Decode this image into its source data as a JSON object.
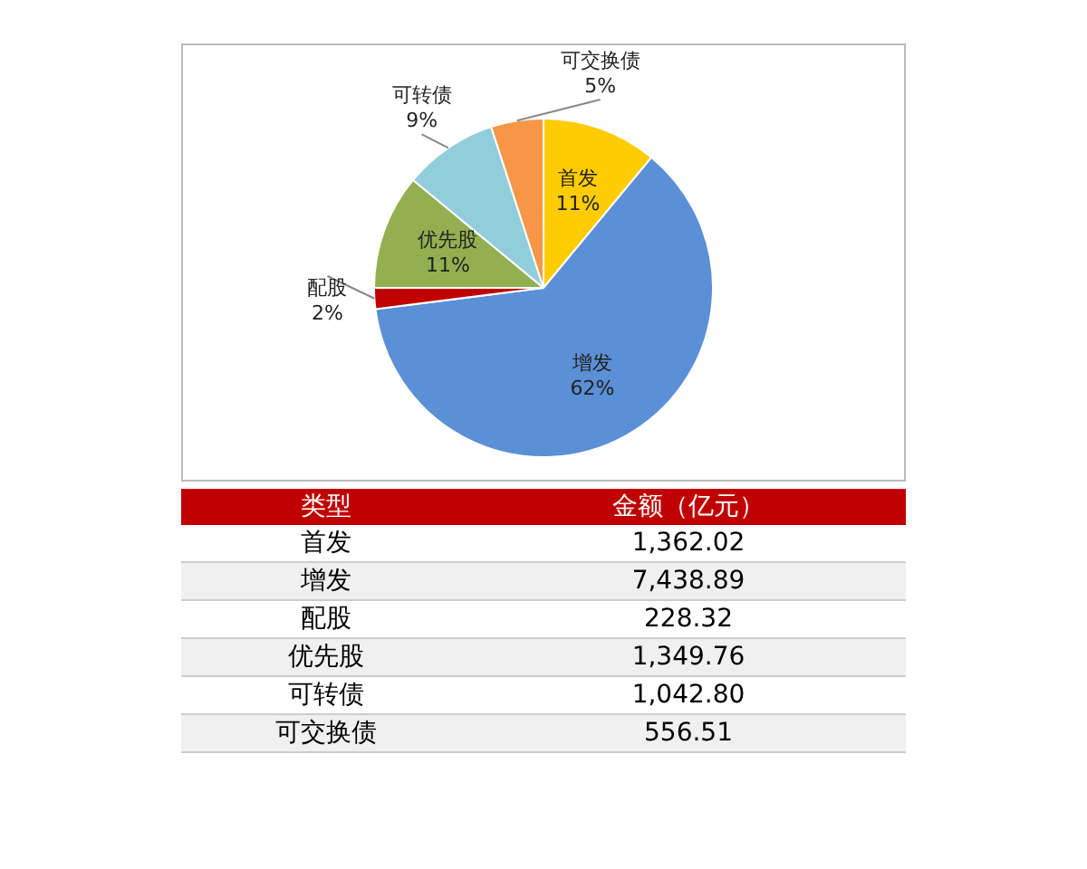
{
  "chart_data": [
    {
      "type": "pie",
      "categories": [
        "首发",
        "增发",
        "配股",
        "优先股",
        "可转债",
        "可交换债"
      ],
      "values": [
        11,
        62,
        2,
        11,
        9,
        5
      ],
      "value_labels": [
        "11%",
        "62%",
        "2%",
        "11%",
        "9%",
        "5%"
      ],
      "colors": [
        "#ffcc00",
        "#5b8fd6",
        "#c00000",
        "#92b050",
        "#92cddc",
        "#f79646"
      ],
      "legend": false
    },
    {
      "type": "other",
      "categories": [
        "首发",
        "增发",
        "配股",
        "优先股",
        "可转债",
        "可交换债"
      ],
      "values": [
        1362.02,
        7438.89,
        228.32,
        1349.76,
        1042.8,
        556.51
      ],
      "value_labels": [
        "1,362.02",
        "7,438.89",
        "228.32",
        "1,349.76",
        "1,042.80",
        "556.51"
      ],
      "annotations": [
        "类型",
        "金额（亿元）"
      ]
    }
  ]
}
